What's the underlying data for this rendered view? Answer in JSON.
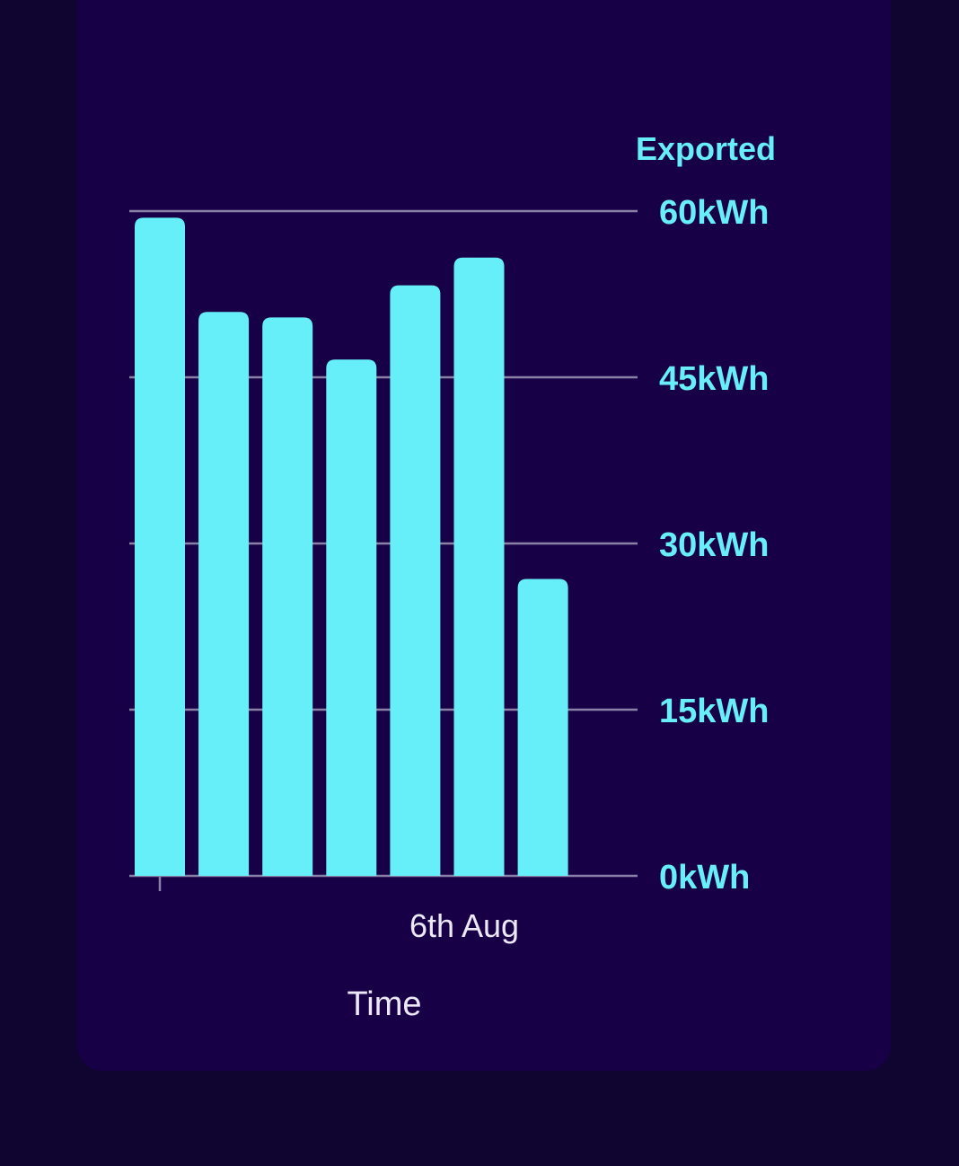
{
  "chart_data": {
    "type": "bar",
    "ylabel": "Exported",
    "xlabel": "Time",
    "y_unit": "kWh",
    "ylim": [
      0,
      60
    ],
    "yticks": [
      {
        "value": 0,
        "label": "0kWh"
      },
      {
        "value": 15,
        "label": "15kWh"
      },
      {
        "value": 30,
        "label": "30kWh"
      },
      {
        "value": 45,
        "label": "45kWh"
      },
      {
        "value": 60,
        "label": "60kWh"
      }
    ],
    "xtick_labels": [
      "6th Aug"
    ],
    "grid": true,
    "bar_color": "#66eff8",
    "values": [
      59.4,
      50.9,
      50.4,
      46.6,
      53.3,
      55.8,
      26.8
    ]
  },
  "colors": {
    "page_background": "#100430",
    "card_background": "#180046",
    "accent": "#66eff8",
    "gridline": "#8a82a6",
    "text": "#ece8f6"
  }
}
